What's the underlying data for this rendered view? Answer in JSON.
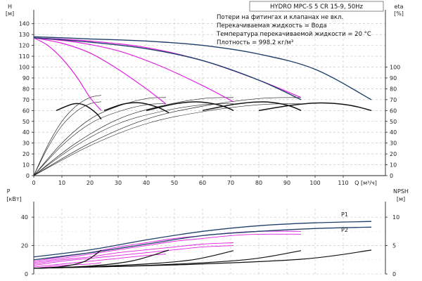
{
  "title": "HYDRO MPC-S 5 CR 15-9, 50Hz",
  "notes": [
    "Потери на фитингах и клапанах не вкл.",
    "Перекачиваемая жидкость = Вода",
    "Температура перекачиваемой жидкости = 20 °C",
    "Плотность = 998.2 кг/м³"
  ],
  "chart_data": [
    {
      "type": "line",
      "name": "performance",
      "x_axis": {
        "label": "Q [м³/ч]",
        "ticks": [
          0,
          10,
          20,
          30,
          40,
          50,
          60,
          70,
          80,
          90,
          100,
          110
        ],
        "range": [
          0,
          125
        ]
      },
      "y_left": {
        "label": "H",
        "unit": "[м]",
        "ticks": [
          0,
          10,
          20,
          30,
          40,
          50,
          60,
          70,
          80,
          90,
          100,
          110,
          120,
          130,
          140
        ],
        "range": [
          0,
          145
        ]
      },
      "y_right": {
        "label": "eta",
        "unit": "[%]",
        "ticks": [
          0,
          10,
          20,
          30,
          40,
          50,
          60,
          70,
          80,
          90,
          100
        ],
        "range": [
          0,
          145
        ]
      },
      "head_series": [
        {
          "pumps": 5,
          "x": [
            0,
            20,
            40,
            60,
            80,
            100,
            120
          ],
          "y": [
            128,
            126,
            124,
            120,
            112,
            98,
            70
          ]
        },
        {
          "pumps": 4,
          "x": [
            0,
            20,
            40,
            60,
            80,
            95
          ],
          "y": [
            127,
            123,
            117,
            106,
            88,
            70
          ]
        }
      ],
      "limit_curves": [
        {
          "x": [
            0,
            5,
            10,
            15,
            20,
            24
          ],
          "y": [
            127,
            120,
            108,
            92,
            72,
            60
          ]
        },
        {
          "x": [
            0,
            10,
            20,
            30,
            40,
            47
          ],
          "y": [
            127,
            122,
            113,
            98,
            80,
            66
          ]
        },
        {
          "x": [
            0,
            15,
            30,
            45,
            60,
            71
          ],
          "y": [
            127,
            123,
            115,
            101,
            83,
            68
          ]
        },
        {
          "x": [
            0,
            20,
            40,
            60,
            80,
            95
          ],
          "y": [
            127,
            124,
            118,
            106,
            88,
            72
          ]
        }
      ],
      "efficiency_series": [
        {
          "x": [
            0,
            5,
            10,
            15,
            20,
            24
          ],
          "y": [
            0,
            28,
            50,
            64,
            72,
            74
          ]
        },
        {
          "x": [
            0,
            10,
            20,
            30,
            40,
            47
          ],
          "y": [
            0,
            30,
            52,
            64,
            71,
            72
          ]
        },
        {
          "x": [
            0,
            15,
            30,
            45,
            60,
            71
          ],
          "y": [
            0,
            30,
            52,
            64,
            71,
            72
          ]
        },
        {
          "x": [
            0,
            20,
            40,
            60,
            80,
            95
          ],
          "y": [
            0,
            30,
            52,
            64,
            71,
            72
          ]
        }
      ],
      "bold_series": [
        {
          "x": [
            8,
            14,
            18,
            22,
            24
          ],
          "y": [
            60,
            66,
            65,
            58,
            52
          ]
        },
        {
          "x": [
            25,
            32,
            38,
            44,
            48
          ],
          "y": [
            60,
            66,
            67,
            63,
            58
          ]
        },
        {
          "x": [
            40,
            50,
            58,
            66,
            71
          ],
          "y": [
            60,
            66,
            68,
            65,
            60
          ]
        },
        {
          "x": [
            60,
            72,
            82,
            90,
            95
          ],
          "y": [
            60,
            66,
            68,
            65,
            60
          ]
        },
        {
          "x": [
            80,
            92,
            102,
            112,
            120
          ],
          "y": [
            60,
            65,
            67,
            65,
            60
          ]
        }
      ]
    },
    {
      "type": "line",
      "name": "power-npsh",
      "x_axis": {
        "label": "Q [м³/ч]",
        "range": [
          0,
          125
        ]
      },
      "y_left": {
        "label": "P",
        "unit": "[кВт]",
        "ticks": [
          0,
          20,
          40
        ],
        "range": [
          0,
          46
        ]
      },
      "y_right": {
        "label": "NPSH",
        "unit": "[м]",
        "ticks": [
          0,
          5,
          10
        ],
        "range": [
          0,
          11.5
        ]
      },
      "series": [
        {
          "name": "P1",
          "x": [
            0,
            20,
            40,
            60,
            80,
            100,
            120
          ],
          "y": [
            12,
            17,
            24,
            30,
            34,
            36,
            37
          ]
        },
        {
          "name": "P2",
          "x": [
            0,
            20,
            40,
            60,
            80,
            100,
            120
          ],
          "y": [
            10,
            15,
            21,
            27,
            30,
            32,
            33
          ]
        }
      ],
      "power_variants": [
        {
          "x": [
            0,
            10,
            20,
            30,
            40,
            50,
            60,
            70,
            80,
            95
          ],
          "y": [
            9,
            12,
            15,
            19,
            22,
            25,
            27,
            29,
            30,
            30
          ]
        },
        {
          "x": [
            0,
            10,
            20,
            30,
            40,
            50,
            60,
            70,
            80,
            95
          ],
          "y": [
            8,
            11,
            14,
            17,
            20,
            23,
            25,
            27,
            28,
            28
          ]
        },
        {
          "x": [
            0,
            10,
            20,
            30,
            40,
            50,
            60,
            71
          ],
          "y": [
            7,
            10,
            12,
            15,
            17,
            19,
            21,
            22
          ]
        },
        {
          "x": [
            0,
            10,
            20,
            30,
            40,
            50,
            60,
            71
          ],
          "y": [
            6,
            9,
            11,
            13,
            15,
            17,
            19,
            20
          ]
        },
        {
          "x": [
            0,
            10,
            20,
            30,
            40,
            47
          ],
          "y": [
            5,
            7,
            9,
            11,
            13,
            14
          ]
        },
        {
          "x": [
            0,
            10,
            20,
            24
          ],
          "y": [
            4,
            6,
            7,
            8
          ]
        }
      ],
      "npsh_series": [
        {
          "x": [
            0,
            10,
            18,
            24
          ],
          "y": [
            1,
            1.3,
            2.2,
            4.2
          ]
        },
        {
          "x": [
            0,
            20,
            35,
            48
          ],
          "y": [
            1,
            1.4,
            2.3,
            4.2
          ]
        },
        {
          "x": [
            0,
            30,
            55,
            71
          ],
          "y": [
            1,
            1.5,
            2.4,
            4.1
          ]
        },
        {
          "x": [
            0,
            40,
            75,
            95
          ],
          "y": [
            1,
            1.5,
            2.5,
            4.1
          ]
        },
        {
          "x": [
            0,
            50,
            95,
            120
          ],
          "y": [
            1,
            1.6,
            2.6,
            4.2
          ]
        }
      ]
    }
  ]
}
